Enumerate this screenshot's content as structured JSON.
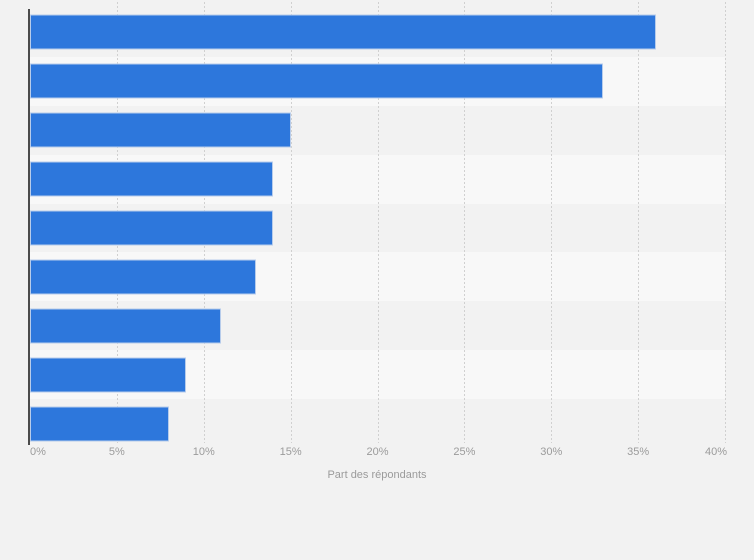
{
  "page": {
    "background_color": "#f2f2f2"
  },
  "chart_data": {
    "type": "bar",
    "orientation": "horizontal",
    "title": "",
    "categories": [
      "",
      "",
      "",
      "",
      "",
      "",
      "",
      "",
      ""
    ],
    "values": [
      36,
      33,
      15,
      14,
      14,
      13,
      11,
      9,
      8
    ],
    "value_unit": "%",
    "xlabel": "Part des répondants",
    "ylabel": "",
    "xlim": [
      0,
      40
    ],
    "x_tick_step": 5,
    "x_tick_labels": [
      "0%",
      "5%",
      "10%",
      "15%",
      "20%",
      "25%",
      "30%",
      "35%",
      "40%"
    ],
    "grid": {
      "vertical": true,
      "style": "dotted"
    },
    "legend": {
      "visible": false
    },
    "row_bands": {
      "odd": "#f2f2f2",
      "even": "#f8f8f8"
    },
    "colors": {
      "bar": "#2d77dc",
      "bar_edge": "#b7cceb",
      "axis_line": "#4b4b4b",
      "gridline": "#d0d0d0",
      "tick_label": "#9b9b9b",
      "axis_label": "#9b9b9b",
      "background": "#f2f2f2"
    }
  }
}
